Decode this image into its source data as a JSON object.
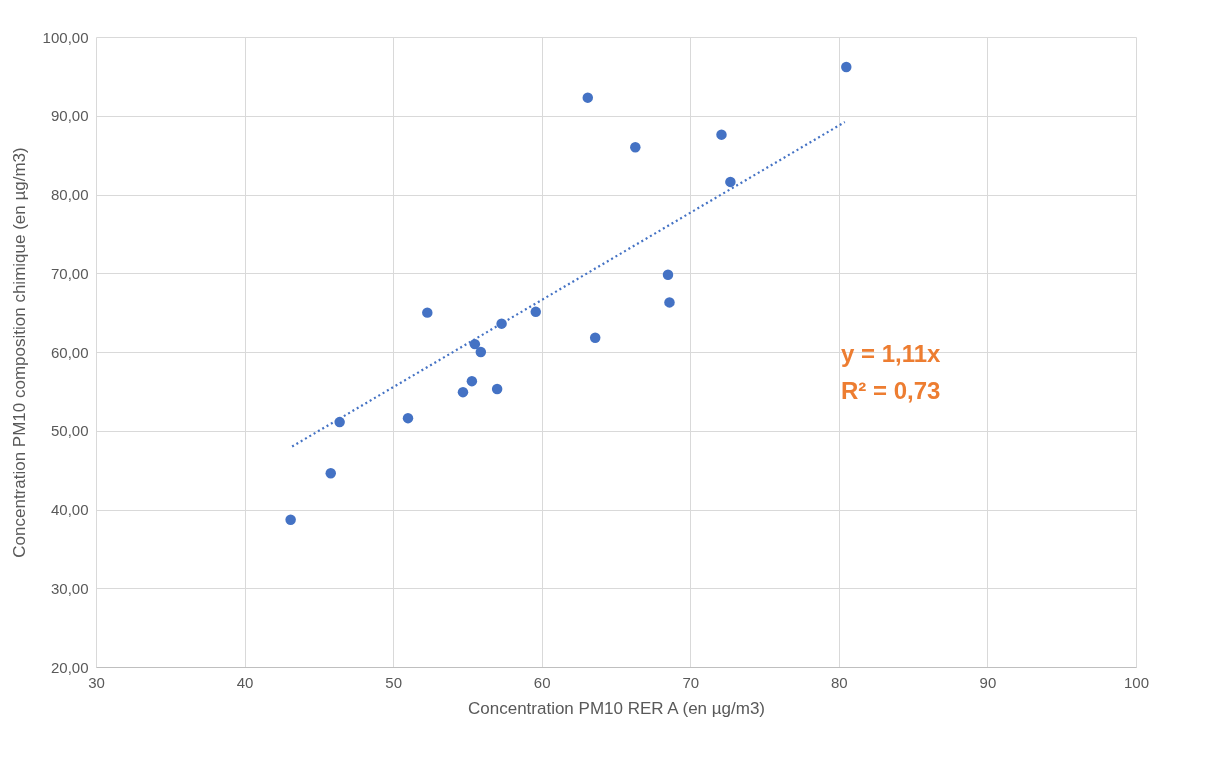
{
  "chart_data": {
    "type": "scatter",
    "xlabel": "Concentration PM10 RER A (en µg/m3)",
    "ylabel": "Concentration PM10 composition chimique (en µg/m3)",
    "annotations": [
      "y = 1,11x",
      "R² = 0,73"
    ],
    "xlim": [
      30,
      100
    ],
    "xticks": [
      30,
      40,
      50,
      60,
      70,
      80,
      90,
      100
    ],
    "ylim": [
      20,
      100
    ],
    "yticks": [
      {
        "value": 20,
        "label": "20,00"
      },
      {
        "value": 30,
        "label": "30,00"
      },
      {
        "value": 40,
        "label": "40,00"
      },
      {
        "value": 50,
        "label": "50,00"
      },
      {
        "value": 60,
        "label": "60,00"
      },
      {
        "value": 70,
        "label": "70,00"
      },
      {
        "value": 80,
        "label": "80,00"
      },
      {
        "value": 90,
        "label": "90,00"
      },
      {
        "value": 100,
        "label": "100,00"
      }
    ],
    "grid": true,
    "marker": "circle",
    "legend": false,
    "series": [
      {
        "color": "#4472c4",
        "x": [
          43.1,
          45.8,
          46.4,
          51.0,
          52.3,
          54.7,
          55.3,
          55.5,
          55.9,
          57.0,
          57.3,
          59.6,
          63.1,
          63.6,
          66.3,
          68.5,
          68.6,
          72.1,
          72.7,
          80.5
        ],
        "values": [
          38.7,
          44.6,
          51.1,
          51.6,
          65.0,
          54.9,
          56.3,
          61.0,
          60.0,
          55.3,
          63.6,
          65.1,
          92.3,
          61.8,
          86.0,
          69.8,
          66.3,
          87.6,
          81.6,
          96.2
        ]
      },
      {
        "type": "line",
        "color": "#4472c4",
        "line_style": "dotted",
        "marker": "none",
        "x": [
          43.2,
          80.4
        ],
        "values": [
          48.0,
          89.2
        ]
      }
    ]
  }
}
